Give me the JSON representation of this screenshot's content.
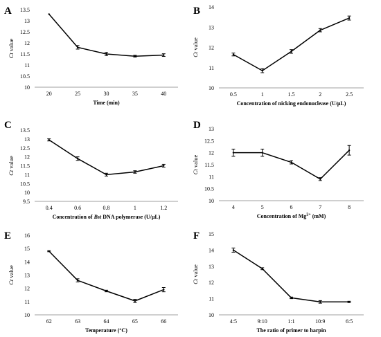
{
  "chart_data": [
    {
      "type": "line",
      "panel_label": "A",
      "ylabel_italic": "Ct",
      "ylabel_rest": " value",
      "xlabel": "Time (min)",
      "categories": [
        "20",
        "25",
        "30",
        "35",
        "40"
      ],
      "values": [
        13.3,
        11.8,
        11.5,
        11.4,
        11.45
      ],
      "errors": [
        0.0,
        0.08,
        0.07,
        0.04,
        0.06
      ],
      "ylim": [
        10,
        13.5
      ],
      "yticks": [
        "10",
        "10.5",
        "11",
        "11.5",
        "12",
        "12.5",
        "13",
        "13.5"
      ],
      "grid": false
    },
    {
      "type": "line",
      "panel_label": "B",
      "ylabel_italic": "Ct",
      "ylabel_rest": " value",
      "xlabel": "Concentration of nicking endonuclease (U/μL)",
      "categories": [
        "0.5",
        "1",
        "1.5",
        "2",
        "2.5"
      ],
      "values": [
        11.65,
        10.85,
        11.8,
        12.85,
        13.45
      ],
      "errors": [
        0.07,
        0.1,
        0.09,
        0.08,
        0.1
      ],
      "ylim": [
        10,
        14
      ],
      "yticks": [
        "10",
        "11",
        "12",
        "13",
        "14"
      ],
      "grid": false
    },
    {
      "type": "line",
      "panel_label": "C",
      "ylabel_italic": "Ct",
      "ylabel_rest": " value",
      "xlabel_pre": "Concentration of ",
      "xlabel_italic": "Bst",
      "xlabel_post": " DNA polymerase (U/μL)",
      "categories": [
        "0.4",
        "0.6",
        "0.8",
        "1",
        "1.2"
      ],
      "values": [
        12.95,
        11.9,
        11.0,
        11.15,
        11.5
      ],
      "errors": [
        0.06,
        0.1,
        0.08,
        0.07,
        0.08
      ],
      "ylim": [
        9.5,
        13.5
      ],
      "yticks": [
        "9.5",
        "10",
        "10.5",
        "11",
        "11.5",
        "12",
        "12.5",
        "13",
        "13.5"
      ],
      "grid": false
    },
    {
      "type": "line",
      "panel_label": "D",
      "ylabel_italic": "Ct",
      "ylabel_rest": " value",
      "xlabel_pre": "Concentration of Mg",
      "xlabel_sup": "2+",
      "xlabel_post": " (mM)",
      "categories": [
        "4",
        "5",
        "6",
        "7",
        "8"
      ],
      "values": [
        12.0,
        12.0,
        11.6,
        10.9,
        12.1
      ],
      "errors": [
        0.15,
        0.15,
        0.07,
        0.06,
        0.2
      ],
      "ylim": [
        10,
        13
      ],
      "yticks": [
        "10",
        "10.5",
        "11",
        "11.5",
        "12",
        "12.5",
        "13"
      ],
      "grid": false
    },
    {
      "type": "line",
      "panel_label": "E",
      "ylabel_italic": "Ct",
      "ylabel_rest": " value",
      "xlabel": "Temperature (°C)",
      "categories": [
        "62",
        "63",
        "64",
        "65",
        "66"
      ],
      "values": [
        14.8,
        12.6,
        11.8,
        11.05,
        11.9
      ],
      "errors": [
        0.04,
        0.12,
        0.06,
        0.12,
        0.16
      ],
      "ylim": [
        10,
        16
      ],
      "yticks": [
        "10",
        "11",
        "12",
        "13",
        "14",
        "15",
        "16"
      ],
      "grid": false
    },
    {
      "type": "line",
      "panel_label": "F",
      "ylabel_italic": "Ct",
      "ylabel_rest": " value",
      "xlabel": "The ratio of primer to harpin",
      "categories": [
        "4:5",
        "9:10",
        "1:1",
        "10:9",
        "6:5"
      ],
      "values": [
        14.0,
        12.85,
        11.05,
        10.8,
        10.8
      ],
      "errors": [
        0.13,
        0.06,
        0.05,
        0.08,
        0.04
      ],
      "ylim": [
        10,
        15
      ],
      "yticks": [
        "10",
        "11",
        "12",
        "13",
        "14",
        "15"
      ],
      "grid": false
    }
  ]
}
